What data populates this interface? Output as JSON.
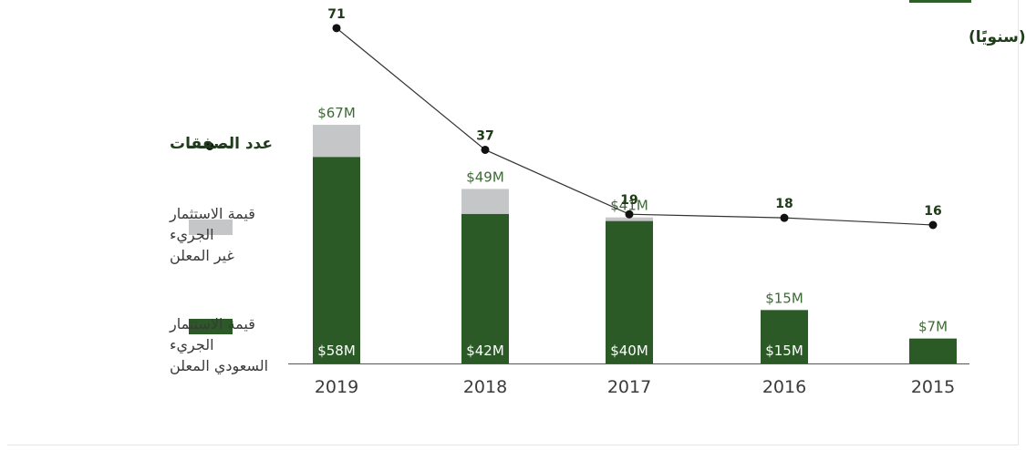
{
  "chart_data": {
    "type": "bar",
    "title": "الاستثمار الجريء (من حيث عدد الصفقات وقيمتها) في السعودية (سنويًا)",
    "categories": [
      "2019",
      "2018",
      "2017",
      "2016",
      "2015"
    ],
    "series": [
      {
        "name": "قيمة الاستثمار الجريء السعودي المعلن",
        "legend_lines": [
          "قيمة الاستثمار",
          "الجريء",
          "السعودي المعلن"
        ],
        "values": [
          58,
          42,
          40,
          15,
          7
        ],
        "labels": [
          "$58M",
          "$42M",
          "$40M",
          "$15M",
          ""
        ],
        "color": "#2b5a26"
      },
      {
        "name": "قيمة الاستثمار الجريء غير المعلن",
        "legend_lines": [
          "قيمة الاستثمار",
          "الجريء",
          "غير المعلن"
        ],
        "values": [
          9,
          7,
          1,
          0,
          0
        ],
        "color": "#c5c6c8"
      },
      {
        "name": "عدد الصفقات",
        "type": "line",
        "values": [
          71,
          37,
          19,
          18,
          16
        ],
        "color": "#333333"
      }
    ],
    "totals": [
      67,
      49,
      41,
      15,
      7
    ],
    "total_labels": [
      "$67M",
      "$49M",
      "$41M",
      "$15M",
      "$7M"
    ],
    "unit": "$M",
    "ylim": [
      0,
      80
    ],
    "deals_ylim": [
      0,
      75
    ],
    "legend_position": "left",
    "grid": false
  }
}
